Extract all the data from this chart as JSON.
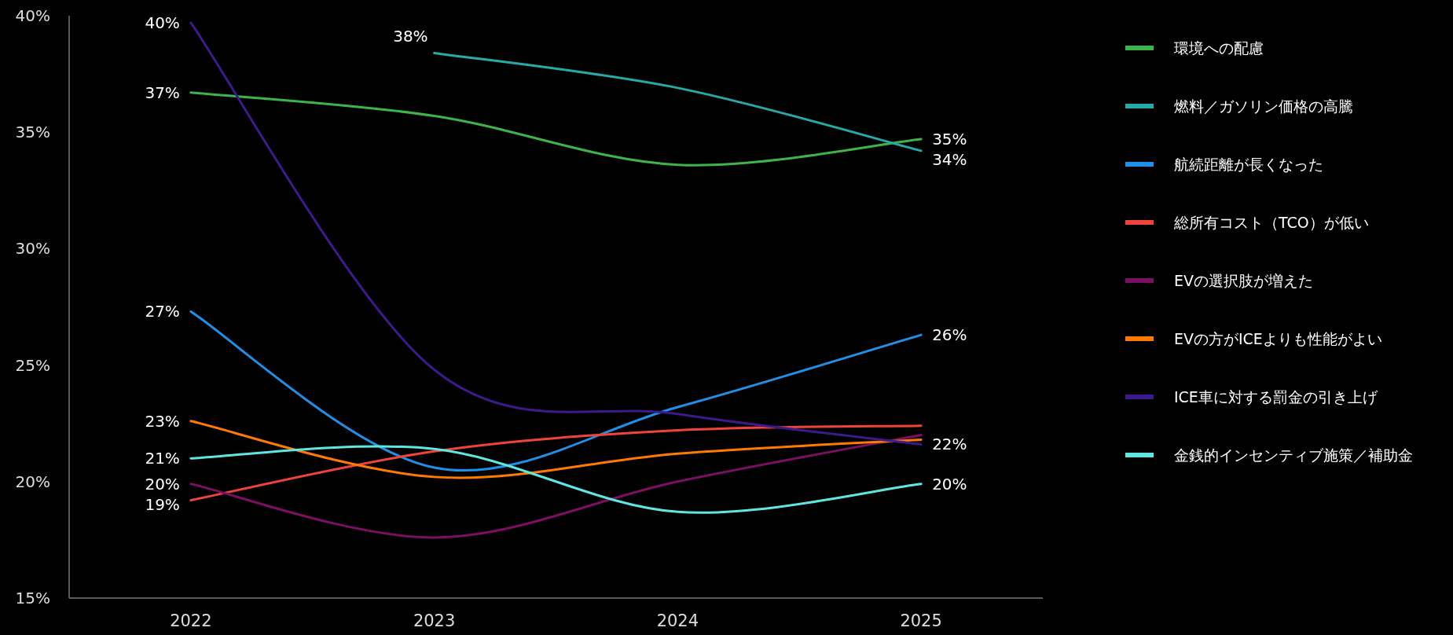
{
  "chart_data": {
    "type": "line",
    "categories": [
      "2022",
      "2023",
      "2024",
      "2025"
    ],
    "ylim": [
      15,
      40
    ],
    "yticks": [
      {
        "value": 15,
        "label": "15%"
      },
      {
        "value": 20,
        "label": "20%"
      },
      {
        "value": 25,
        "label": "25%"
      },
      {
        "value": 30,
        "label": "30%"
      },
      {
        "value": 35,
        "label": "35%"
      },
      {
        "value": 40,
        "label": "40%"
      }
    ],
    "grid": false,
    "legend": "right",
    "marker": "none",
    "line_style": "solid",
    "series": [
      {
        "name": "環境への配慮",
        "color": "#3cb44b",
        "values": [
          36.7,
          35.7,
          33.6,
          34.7
        ],
        "value_labels": [
          "37%",
          null,
          null,
          "35%"
        ]
      },
      {
        "name": "燃料／ガソリン価格の高騰",
        "color": "#26aaa8",
        "values": [
          null,
          38.4,
          36.9,
          34.2
        ],
        "value_labels": [
          null,
          "38%",
          null,
          "34%"
        ]
      },
      {
        "name": "航続距離が長くなった",
        "color": "#1e90e8",
        "values": [
          27.3,
          20.6,
          23.2,
          26.3
        ],
        "value_labels": [
          "27%",
          null,
          null,
          "26%"
        ]
      },
      {
        "name": "総所有コスト（TCO）が低い",
        "color": "#f0443a",
        "values": [
          19.2,
          21.3,
          22.2,
          22.4
        ],
        "value_labels": [
          "19%",
          null,
          null,
          null
        ]
      },
      {
        "name": "EVの選択肢が増えた",
        "color": "#7a1060",
        "values": [
          19.9,
          17.6,
          20.0,
          22.0
        ],
        "value_labels": [
          "20%",
          null,
          null,
          null
        ]
      },
      {
        "name": "EVの方がICEよりも性能がよい",
        "color": "#ff7a00",
        "values": [
          22.6,
          20.2,
          21.2,
          21.8
        ],
        "value_labels": [
          "23%",
          null,
          null,
          null
        ]
      },
      {
        "name": "ICE車に対する罰金の引き上げ",
        "color": "#3d1a8c",
        "values": [
          39.7,
          24.8,
          22.9,
          21.6
        ],
        "value_labels": [
          "40%",
          null,
          null,
          "22%"
        ]
      },
      {
        "name": "金銭的インセンティブ施策／補助金",
        "color": "#5ee6e0",
        "values": [
          21.0,
          21.4,
          18.7,
          19.9
        ],
        "value_labels": [
          "21%",
          null,
          null,
          "20%"
        ]
      }
    ]
  }
}
